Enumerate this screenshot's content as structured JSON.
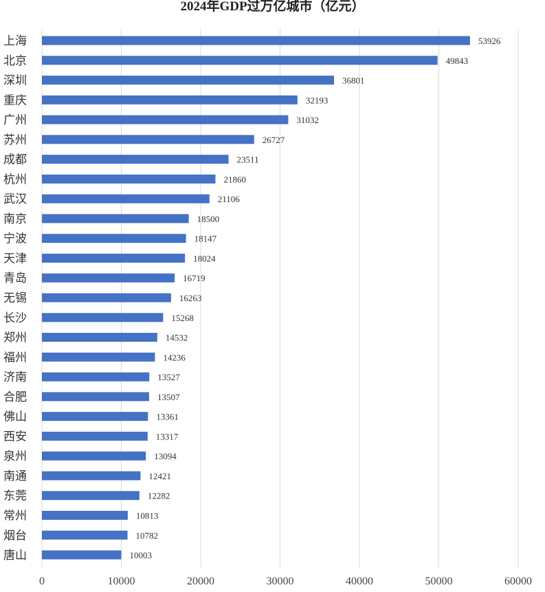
{
  "chart_data": {
    "type": "bar",
    "orientation": "horizontal",
    "title": "2024年GDP过万亿城市（亿元）",
    "categories": [
      "上海",
      "北京",
      "深圳",
      "重庆",
      "广州",
      "苏州",
      "成都",
      "杭州",
      "武汉",
      "南京",
      "宁波",
      "天津",
      "青岛",
      "无锡",
      "长沙",
      "郑州",
      "福州",
      "济南",
      "合肥",
      "佛山",
      "西安",
      "泉州",
      "南通",
      "东莞",
      "常州",
      "烟台",
      "唐山"
    ],
    "values": [
      53926,
      49843,
      36801,
      32193,
      31032,
      26727,
      23511,
      21860,
      21106,
      18500,
      18147,
      18024,
      16719,
      16263,
      15268,
      14532,
      14236,
      13527,
      13507,
      13361,
      13317,
      13094,
      12421,
      12282,
      10813,
      10782,
      10003
    ],
    "xlim": [
      0,
      60000
    ],
    "xticks": [
      "0",
      "10000",
      "20000",
      "30000",
      "40000",
      "50000",
      "60000"
    ],
    "grid": true,
    "legend": "none",
    "bar_color": "#4472C4",
    "grid_color": "#D9D9D9"
  }
}
